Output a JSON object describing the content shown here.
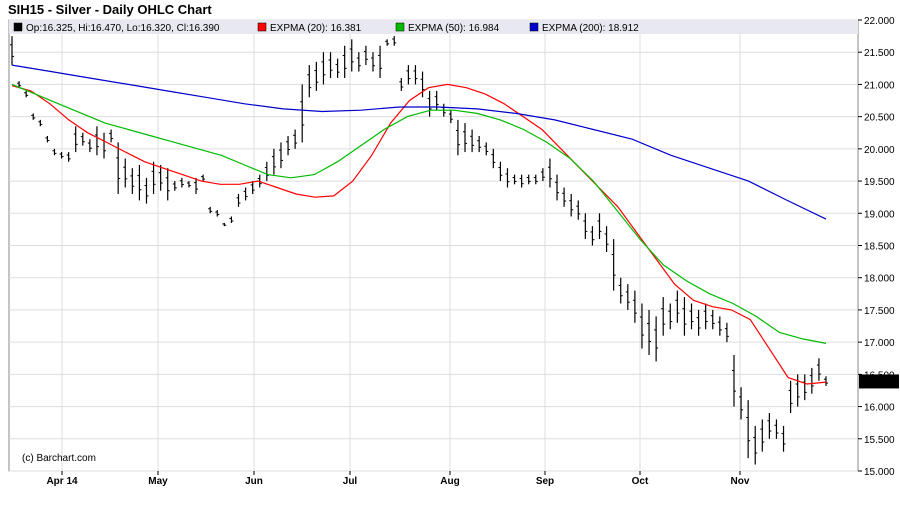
{
  "header": {
    "title": "SIH15 - Silver - Daily OHLC Chart"
  },
  "legend": {
    "items": [
      {
        "label": "Op:16.325, Hi:16.470, Lo:16.320, Cl:16.390",
        "color": "#000000"
      },
      {
        "label": "EXPMA (20): 16.381",
        "color": "#ff0000"
      },
      {
        "label": "EXPMA (50): 16.984",
        "color": "#00bb00"
      },
      {
        "label": "EXPMA (200): 18.912",
        "color": "#0000cc"
      }
    ]
  },
  "credit": "(c) Barchart.com",
  "price_badge": "16.390",
  "chart_data": {
    "type": "line",
    "title": "SIH15 - Silver - Daily OHLC Chart",
    "ylim": [
      15.0,
      22.0
    ],
    "yticks": [
      "15.000",
      "15.500",
      "16.000",
      "16.500",
      "17.000",
      "17.500",
      "18.000",
      "18.500",
      "19.000",
      "19.500",
      "20.000",
      "20.500",
      "21.000",
      "21.500",
      "22.000"
    ],
    "xlabels": [
      "Apr 14",
      "May",
      "Jun",
      "Jul",
      "Aug",
      "Sep",
      "Oct",
      "Nov"
    ],
    "grid": true,
    "last_close": 16.39,
    "series": [
      {
        "name": "EXPMA (20)",
        "color": "#ff0000",
        "values": [
          20.98,
          20.9,
          20.7,
          20.45,
          20.25,
          20.1,
          19.95,
          19.8,
          19.7,
          19.6,
          19.5,
          19.45,
          19.45,
          19.5,
          19.4,
          19.3,
          19.25,
          19.27,
          19.5,
          19.9,
          20.4,
          20.75,
          20.95,
          21.0,
          20.95,
          20.85,
          20.7,
          20.5,
          20.3,
          20.0,
          19.7,
          19.4,
          19.1,
          18.7,
          18.3,
          17.9,
          17.65,
          17.55,
          17.5,
          17.35,
          16.9,
          16.45,
          16.35,
          16.38
        ]
      },
      {
        "name": "EXPMA (50)",
        "color": "#00bb00",
        "values": [
          21.0,
          20.85,
          20.7,
          20.55,
          20.4,
          20.3,
          20.2,
          20.1,
          20.0,
          19.9,
          19.75,
          19.6,
          19.55,
          19.6,
          19.8,
          20.05,
          20.3,
          20.5,
          20.6,
          20.6,
          20.55,
          20.45,
          20.3,
          20.1,
          19.85,
          19.5,
          19.05,
          18.6,
          18.2,
          17.95,
          17.75,
          17.6,
          17.4,
          17.15,
          17.05,
          16.98
        ]
      },
      {
        "name": "EXPMA (200)",
        "color": "#0000cc",
        "values": [
          21.3,
          21.2,
          21.1,
          21.0,
          20.9,
          20.8,
          20.7,
          20.62,
          20.58,
          20.6,
          20.65,
          20.65,
          20.62,
          20.55,
          20.45,
          20.3,
          20.15,
          19.9,
          19.7,
          19.5,
          19.2,
          18.91
        ]
      }
    ],
    "ohlc": [
      [
        21.75,
        21.3
      ],
      [
        21.05,
        20.95
      ],
      [
        20.9,
        20.8
      ],
      [
        20.55,
        20.45
      ],
      [
        20.45,
        20.35
      ],
      [
        20.2,
        20.1
      ],
      [
        20.0,
        19.9
      ],
      [
        19.95,
        19.85
      ],
      [
        19.95,
        19.8
      ],
      [
        20.35,
        19.95
      ],
      [
        20.25,
        20.05
      ],
      [
        20.15,
        19.95
      ],
      [
        20.35,
        19.9
      ],
      [
        20.25,
        19.85
      ],
      [
        20.3,
        20.1
      ],
      [
        20.1,
        19.3
      ],
      [
        19.85,
        19.4
      ],
      [
        19.7,
        19.3
      ],
      [
        19.75,
        19.2
      ],
      [
        19.55,
        19.15
      ],
      [
        19.8,
        19.3
      ],
      [
        19.75,
        19.35
      ],
      [
        19.7,
        19.2
      ],
      [
        19.5,
        19.35
      ],
      [
        19.55,
        19.4
      ],
      [
        19.5,
        19.4
      ],
      [
        19.55,
        19.3
      ],
      [
        19.6,
        19.5
      ],
      [
        19.1,
        19.0
      ],
      [
        19.05,
        18.95
      ],
      [
        18.85,
        18.8
      ],
      [
        18.95,
        18.85
      ],
      [
        19.3,
        19.1
      ],
      [
        19.4,
        19.2
      ],
      [
        19.5,
        19.3
      ],
      [
        19.6,
        19.4
      ],
      [
        19.8,
        19.5
      ],
      [
        20.0,
        19.6
      ],
      [
        20.1,
        19.7
      ],
      [
        20.2,
        19.9
      ],
      [
        20.3,
        20.0
      ],
      [
        21.0,
        20.1
      ],
      [
        21.3,
        20.8
      ],
      [
        21.35,
        20.9
      ],
      [
        21.5,
        21.0
      ],
      [
        21.5,
        21.1
      ],
      [
        21.4,
        21.1
      ],
      [
        21.6,
        21.1
      ],
      [
        21.7,
        21.2
      ],
      [
        21.5,
        21.2
      ],
      [
        21.6,
        21.3
      ],
      [
        21.5,
        21.2
      ],
      [
        21.6,
        21.1
      ],
      [
        21.7,
        21.6
      ],
      [
        21.75,
        21.6
      ],
      [
        21.1,
        20.9
      ],
      [
        21.3,
        21.0
      ],
      [
        21.3,
        21.0
      ],
      [
        21.2,
        20.8
      ],
      [
        20.9,
        20.5
      ],
      [
        20.9,
        20.6
      ],
      [
        20.7,
        20.5
      ],
      [
        20.6,
        20.4
      ],
      [
        20.45,
        19.9
      ],
      [
        20.4,
        19.95
      ],
      [
        20.3,
        19.95
      ],
      [
        20.2,
        19.95
      ],
      [
        20.1,
        19.9
      ],
      [
        20.0,
        19.7
      ],
      [
        19.8,
        19.5
      ],
      [
        19.7,
        19.4
      ],
      [
        19.6,
        19.45
      ],
      [
        19.6,
        19.4
      ],
      [
        19.6,
        19.45
      ],
      [
        19.6,
        19.45
      ],
      [
        19.7,
        19.5
      ],
      [
        19.85,
        19.4
      ],
      [
        19.6,
        19.2
      ],
      [
        19.4,
        19.1
      ],
      [
        19.3,
        18.95
      ],
      [
        19.2,
        18.9
      ],
      [
        19.0,
        18.6
      ],
      [
        18.8,
        18.5
      ],
      [
        19.0,
        18.6
      ],
      [
        18.8,
        18.4
      ],
      [
        18.6,
        17.8
      ],
      [
        18.0,
        17.6
      ],
      [
        17.9,
        17.5
      ],
      [
        17.8,
        17.3
      ],
      [
        17.6,
        16.9
      ],
      [
        17.5,
        16.8
      ],
      [
        17.4,
        16.7
      ],
      [
        17.7,
        17.1
      ],
      [
        17.6,
        17.2
      ],
      [
        17.8,
        17.3
      ],
      [
        17.7,
        17.1
      ],
      [
        17.6,
        17.2
      ],
      [
        17.5,
        17.1
      ],
      [
        17.6,
        17.2
      ],
      [
        17.5,
        17.2
      ],
      [
        17.4,
        17.1
      ],
      [
        17.3,
        17.0
      ],
      [
        16.8,
        16.0
      ],
      [
        16.3,
        15.8
      ],
      [
        16.1,
        15.2
      ],
      [
        15.7,
        15.1
      ],
      [
        15.8,
        15.3
      ],
      [
        15.9,
        15.5
      ],
      [
        15.8,
        15.5
      ],
      [
        15.7,
        15.3
      ],
      [
        16.4,
        15.9
      ],
      [
        16.5,
        16.0
      ],
      [
        16.5,
        16.1
      ],
      [
        16.6,
        16.2
      ],
      [
        16.75,
        16.4
      ],
      [
        16.47,
        16.32
      ]
    ]
  }
}
